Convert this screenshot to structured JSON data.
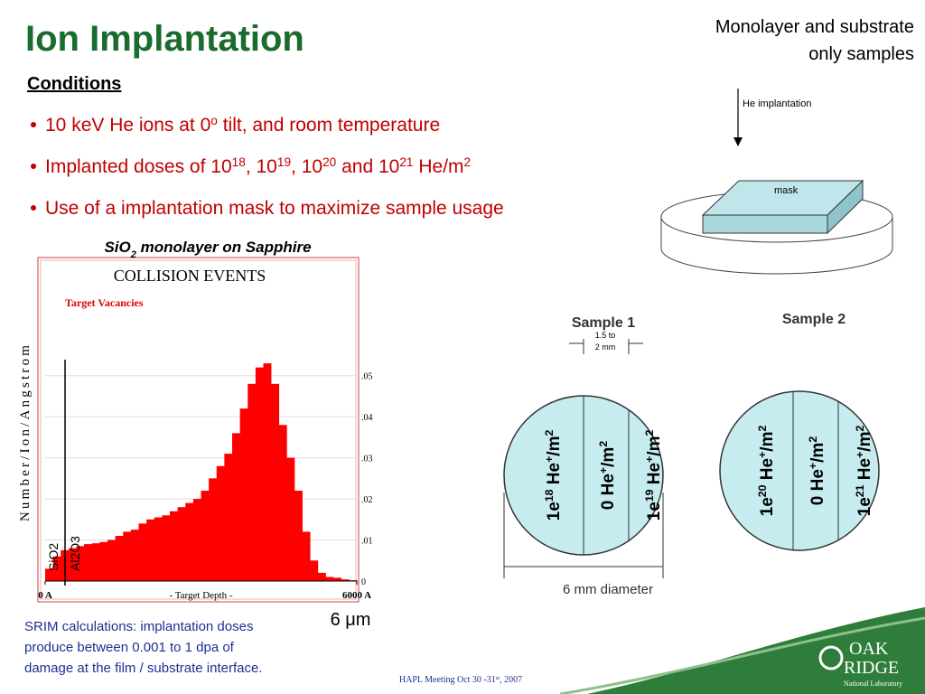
{
  "header": {
    "title": "Ion Implantation",
    "note": [
      "Monolayer and substrate",
      "only samples"
    ]
  },
  "conditions": {
    "heading": "Conditions",
    "bullets": [
      [
        "10 keV He ions at 0",
        {
          "sup": "o"
        },
        " tilt, and room temperature"
      ],
      [
        "Implanted doses of 10",
        {
          "sup": "18"
        },
        ", 10",
        {
          "sup": "19"
        },
        ", 10",
        {
          "sup": "20"
        },
        " and 10",
        {
          "sup": "21"
        },
        " He/m",
        {
          "sup": "2"
        }
      ],
      [
        "Use of a implantation mask to maximize sample usage"
      ]
    ]
  },
  "chart_data": {
    "type": "histogram",
    "caption": [
      "SiO",
      {
        "sub": "2"
      },
      " monolayer on Sapphire"
    ],
    "title": "COLLISION EVENTS",
    "legend": "Target Vacancies",
    "ylabel": "Number/Ion/Angstrom",
    "xlabel": "- Target Depth -",
    "annotations": [
      "SiO2",
      "Al2O3"
    ],
    "bins": [
      0,
      150,
      300,
      450,
      600,
      750,
      900,
      1050,
      1200,
      1350,
      1500,
      1650,
      1800,
      1950,
      2100,
      2250,
      2400,
      2550,
      2700,
      2850,
      3000,
      3150,
      3300,
      3450,
      3600,
      3750,
      3900,
      4050,
      4200,
      4350,
      4500,
      4650,
      4800,
      4950,
      5100,
      5250,
      5400,
      5550,
      5700,
      5850,
      6000
    ],
    "values": [
      0.003,
      0.006,
      0.0075,
      0.008,
      0.0085,
      0.009,
      0.0092,
      0.0095,
      0.01,
      0.011,
      0.012,
      0.0125,
      0.014,
      0.015,
      0.0155,
      0.016,
      0.017,
      0.018,
      0.019,
      0.02,
      0.022,
      0.025,
      0.028,
      0.031,
      0.036,
      0.042,
      0.048,
      0.052,
      0.053,
      0.048,
      0.038,
      0.03,
      0.022,
      0.012,
      0.005,
      0.002,
      0.001,
      0.0008,
      0.0004,
      0.0002
    ],
    "color": "#ff0000",
    "xlim": [
      0,
      6000
    ],
    "xticks": [
      {
        "value": 0,
        "label": "0 A"
      },
      {
        "value": 6000,
        "label": "6000 A"
      }
    ],
    "ylim": [
      0,
      0.055
    ],
    "yticks": [
      0,
      {
        "value": 0.01,
        "label": ".01"
      },
      {
        "value": 0.02,
        "label": ".02"
      },
      {
        "value": 0.03,
        "label": ".03"
      },
      {
        "value": 0.04,
        "label": ".04"
      },
      {
        "value": 0.05,
        "label": ".05"
      }
    ],
    "grid": true
  },
  "diagram": {
    "beam": "He implantation",
    "mask": "mask"
  },
  "samples": [
    {
      "title": "Sample 1",
      "stripes": [
        [
          "1e",
          {
            "sup": "18"
          },
          " He",
          {
            "sup": "+"
          },
          "/m",
          {
            "sup": "2"
          }
        ],
        [
          "0 He",
          {
            "sup": "+"
          },
          "/m",
          {
            "sup": "2"
          }
        ],
        [
          "1e",
          {
            "sup": "19"
          },
          " He",
          {
            "sup": "+"
          },
          "/m",
          {
            "sup": "2"
          }
        ]
      ]
    },
    {
      "title": "Sample 2",
      "stripes": [
        [
          "1e",
          {
            "sup": "20"
          },
          " He",
          {
            "sup": "+"
          },
          "/m",
          {
            "sup": "2"
          }
        ],
        [
          "0 He",
          {
            "sup": "+"
          },
          "/m",
          {
            "sup": "2"
          }
        ],
        [
          "1e",
          {
            "sup": "21"
          },
          " He",
          {
            "sup": "+"
          },
          "/m",
          {
            "sup": "2"
          }
        ]
      ]
    }
  ],
  "spacing": [
    "1.5 to",
    "2 mm"
  ],
  "diameter": "6 mm diameter",
  "footer": {
    "srim": [
      "SRIM calculations: implantation doses",
      "produce between 0.001 to 1 dpa of",
      "damage at the film / substrate interface."
    ],
    "scale": "6 μm",
    "meeting": [
      "HAPL Meeting Oct 30 -31",
      {
        "sup": "st"
      },
      ", 2007"
    ],
    "logo": [
      "OAK",
      "RIDGE",
      "National Laboratory"
    ]
  }
}
